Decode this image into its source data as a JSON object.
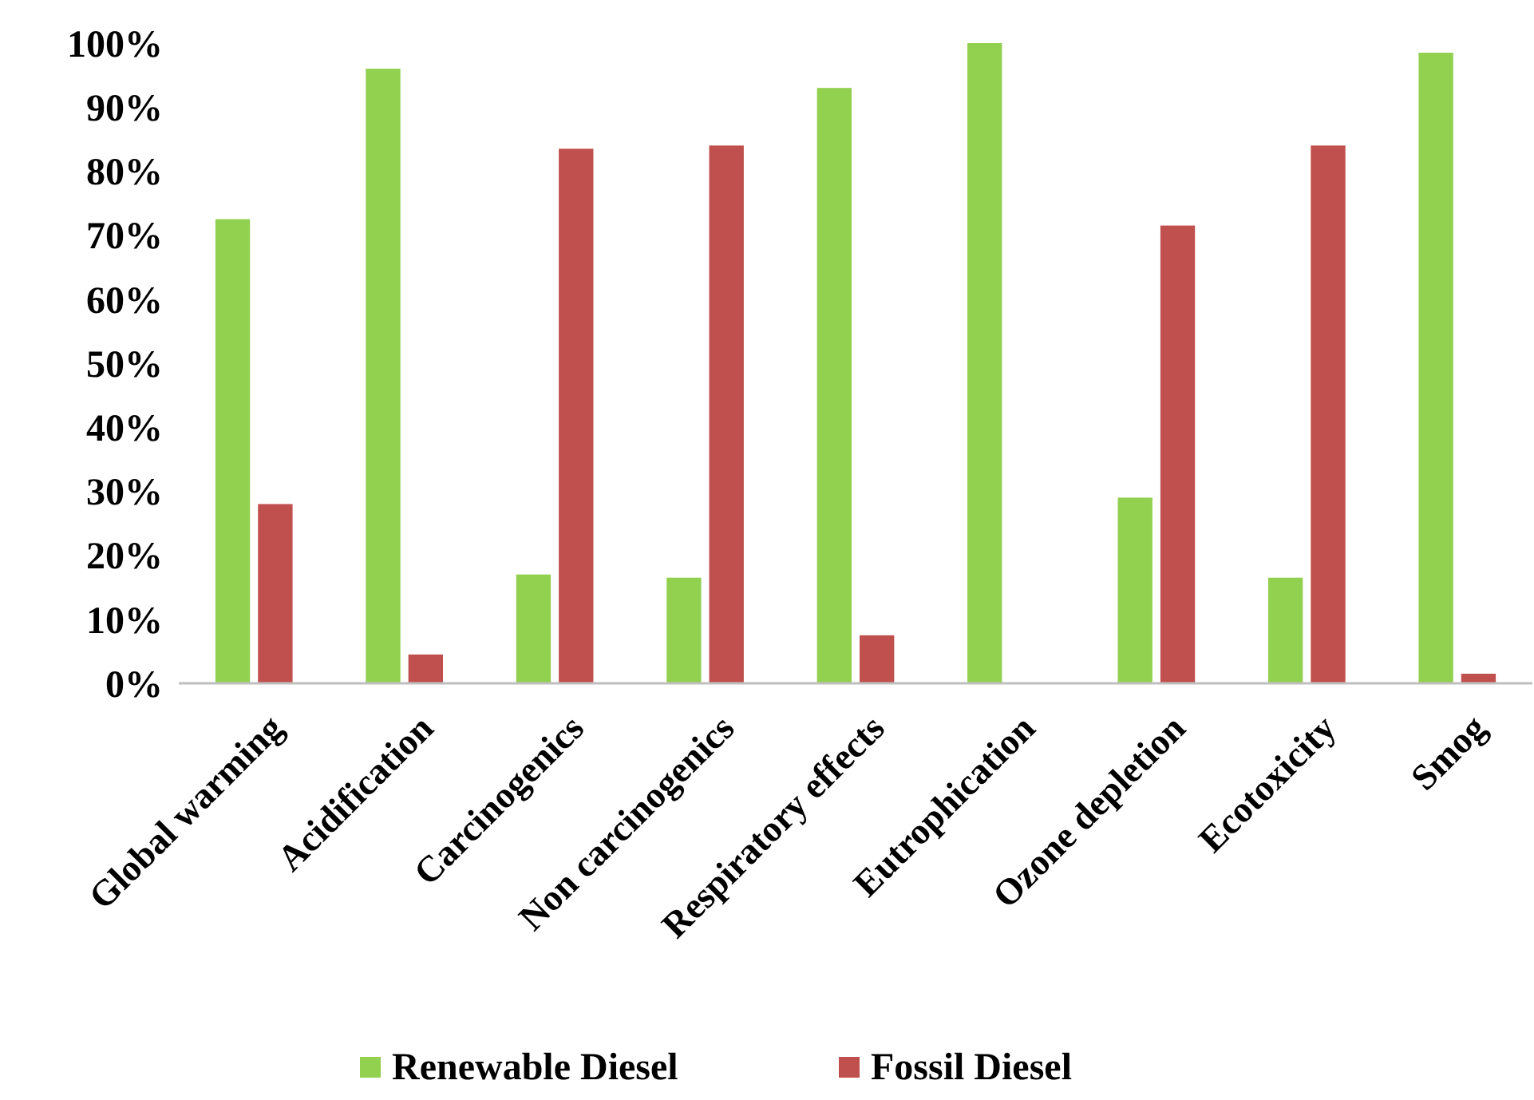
{
  "chart_data": {
    "type": "bar",
    "categories": [
      "Global warming",
      "Acidification",
      "Carcinogenics",
      "Non carcinogenics",
      "Respiratory effects",
      "Eutrophication",
      "Ozone depletion",
      "Ecotoxicity",
      "Smog"
    ],
    "series": [
      {
        "name": "Renewable Diesel",
        "color": "#92d050",
        "values": [
          72.5,
          96,
          17,
          16.5,
          93,
          100,
          29,
          16.5,
          98.5
        ]
      },
      {
        "name": "Fossil Diesel",
        "color": "#c0504d",
        "values": [
          28,
          4.5,
          83.5,
          84,
          7.5,
          0,
          71.5,
          84,
          1.5
        ]
      }
    ],
    "ylim": [
      0,
      100
    ],
    "yticks": [
      {
        "value": 0,
        "label": "0%"
      },
      {
        "value": 10,
        "label": "10%"
      },
      {
        "value": 20,
        "label": "20%"
      },
      {
        "value": 30,
        "label": "30%"
      },
      {
        "value": 40,
        "label": "40%"
      },
      {
        "value": 50,
        "label": "50%"
      },
      {
        "value": 60,
        "label": "60%"
      },
      {
        "value": 70,
        "label": "70%"
      },
      {
        "value": 80,
        "label": "80%"
      },
      {
        "value": 90,
        "label": "90%"
      },
      {
        "value": 100,
        "label": "100%"
      }
    ],
    "grid": false,
    "legend": "bottom"
  }
}
